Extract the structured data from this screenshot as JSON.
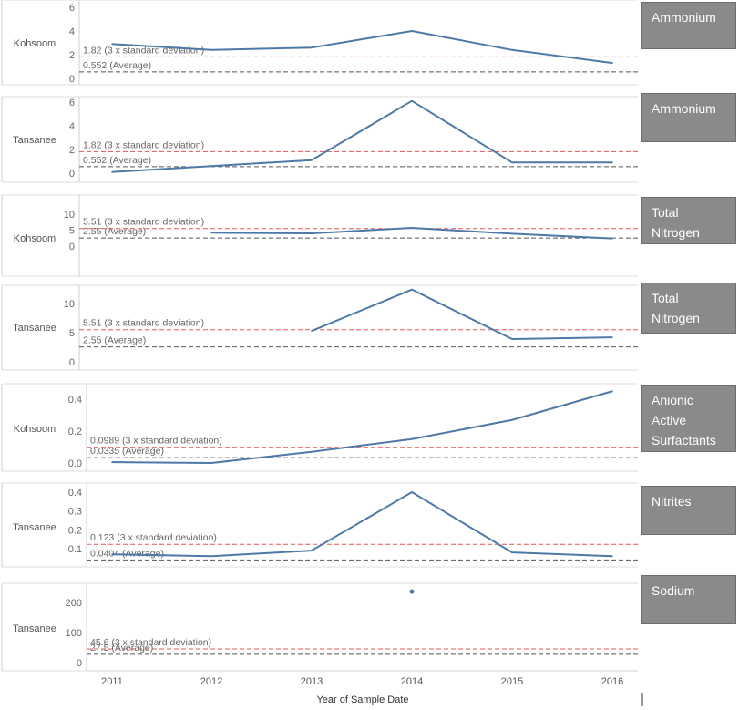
{
  "x_axis": {
    "title": "Year of Sample Date",
    "ticks": [
      "2011",
      "2012",
      "2013",
      "2014",
      "2015",
      "2016"
    ]
  },
  "colors": {
    "line": "#4e79a7",
    "std_ref": "#e15759",
    "avg_ref": "#555555",
    "label_bg": "#8a8a8a"
  },
  "chart_data": [
    {
      "type": "line",
      "row_label": "Kohsoom",
      "panel_label": "Ammonium",
      "x": [
        2011,
        2012,
        2013,
        2014,
        2015,
        2016
      ],
      "series": [
        {
          "values": [
            2.9,
            2.4,
            2.6,
            4.0,
            2.4,
            1.3
          ]
        }
      ],
      "yticks": [
        "0",
        "2",
        "4",
        "6"
      ],
      "ylim": [
        0,
        6
      ],
      "ref_std": {
        "value": 1.82,
        "label": "1.82 (3 x standard deviation)"
      },
      "ref_avg": {
        "value": 0.552,
        "label": "0.552 (Average)"
      }
    },
    {
      "type": "line",
      "row_label": "Tansanee",
      "panel_label": "Ammonium",
      "x": [
        2011,
        2012,
        2013,
        2014,
        2015,
        2016
      ],
      "series": [
        {
          "values": [
            0.1,
            0.6,
            1.1,
            6.1,
            0.9,
            0.9
          ]
        }
      ],
      "yticks": [
        "0",
        "2",
        "4",
        "6"
      ],
      "ylim": [
        0,
        6
      ],
      "ref_std": {
        "value": 1.82,
        "label": "1.82 (3 x standard deviation)"
      },
      "ref_avg": {
        "value": 0.552,
        "label": "0.552 (Average)"
      }
    },
    {
      "type": "line",
      "row_label": "Kohsoom",
      "panel_label": "Total Nitrogen",
      "x": [
        2012,
        2013,
        2014,
        2015,
        2016
      ],
      "series": [
        {
          "values": [
            4.2,
            4.0,
            5.7,
            3.9,
            2.4
          ]
        }
      ],
      "yticks": [
        "0",
        "5",
        "10"
      ],
      "ylim": [
        0,
        10
      ],
      "ref_std": {
        "value": 5.51,
        "label": "5.51 (3 x standard deviation)"
      },
      "ref_avg": {
        "value": 2.55,
        "label": "2.55 (Average)"
      }
    },
    {
      "type": "line",
      "row_label": "Tansanee",
      "panel_label": "Total Nitrogen",
      "x": [
        2013,
        2014,
        2015,
        2016
      ],
      "series": [
        {
          "values": [
            5.3,
            12.4,
            3.9,
            4.2
          ]
        }
      ],
      "yticks": [
        "0",
        "5",
        "10"
      ],
      "ylim": [
        0,
        10
      ],
      "ref_std": {
        "value": 5.51,
        "label": "5.51 (3 x standard deviation)"
      },
      "ref_avg": {
        "value": 2.55,
        "label": "2.55 (Average)"
      }
    },
    {
      "type": "line",
      "row_label": "Kohsoom",
      "panel_label": "Anionic Active Surfactants",
      "x": [
        2011,
        2012,
        2013,
        2014,
        2015,
        2016
      ],
      "series": [
        {
          "values": [
            0.005,
            0.0,
            0.07,
            0.15,
            0.27,
            0.45
          ]
        }
      ],
      "yticks": [
        "0.0",
        "0.2",
        "0.4"
      ],
      "ylim": [
        0,
        0.4
      ],
      "ref_std": {
        "value": 0.0989,
        "label": "0.0989 (3 x standard deviation)"
      },
      "ref_avg": {
        "value": 0.0335,
        "label": "0.0335 (Average)"
      }
    },
    {
      "type": "line",
      "row_label": "Tansanee",
      "panel_label": "Nitrites",
      "x": [
        2011,
        2012,
        2013,
        2014,
        2015,
        2016
      ],
      "series": [
        {
          "values": [
            0.07,
            0.06,
            0.09,
            0.4,
            0.08,
            0.06
          ]
        }
      ],
      "yticks": [
        "0.1",
        "0.2",
        "0.3",
        "0.4"
      ],
      "ylim": [
        0.1,
        0.4
      ],
      "ref_std": {
        "value": 0.123,
        "label": "0.123 (3 x standard deviation)"
      },
      "ref_avg": {
        "value": 0.0404,
        "label": "0.0404 (Average)"
      }
    },
    {
      "type": "scatter",
      "row_label": "Tansanee",
      "panel_label": "Sodium",
      "x": [
        2014
      ],
      "series": [
        {
          "values": [
            236
          ]
        }
      ],
      "yticks": [
        "0",
        "100",
        "200"
      ],
      "ylim": [
        0,
        200
      ],
      "ref_std": {
        "value": 45.6,
        "label": "45.6 (3 x standard deviation)"
      },
      "ref_avg": {
        "value": 27.5,
        "label": "27.5 (Average)"
      }
    }
  ]
}
